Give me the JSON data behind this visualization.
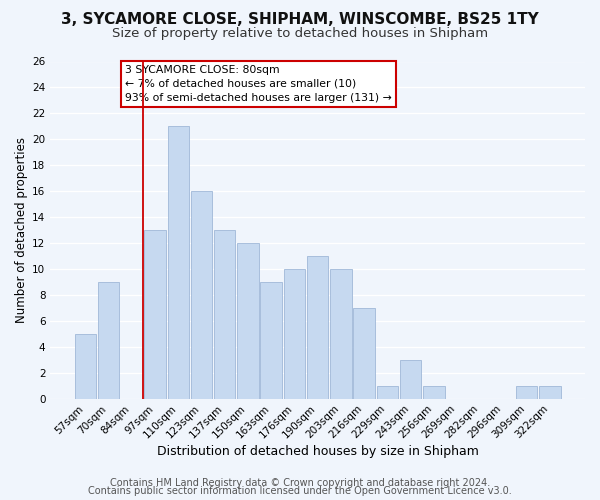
{
  "title1": "3, SYCAMORE CLOSE, SHIPHAM, WINSCOMBE, BS25 1TY",
  "title2": "Size of property relative to detached houses in Shipham",
  "xlabel": "Distribution of detached houses by size in Shipham",
  "ylabel": "Number of detached properties",
  "bar_labels": [
    "57sqm",
    "70sqm",
    "84sqm",
    "97sqm",
    "110sqm",
    "123sqm",
    "137sqm",
    "150sqm",
    "163sqm",
    "176sqm",
    "190sqm",
    "203sqm",
    "216sqm",
    "229sqm",
    "243sqm",
    "256sqm",
    "269sqm",
    "282sqm",
    "296sqm",
    "309sqm",
    "322sqm"
  ],
  "bar_values": [
    5,
    9,
    0,
    13,
    21,
    16,
    13,
    12,
    9,
    10,
    11,
    10,
    7,
    1,
    3,
    1,
    0,
    0,
    0,
    1,
    1
  ],
  "bar_color": "#c6d9f0",
  "bar_edge_color": "#a0b8d8",
  "ylim": [
    0,
    26
  ],
  "yticks": [
    0,
    2,
    4,
    6,
    8,
    10,
    12,
    14,
    16,
    18,
    20,
    22,
    24,
    26
  ],
  "vline_x_index": 2.5,
  "vline_color": "#cc0000",
  "annotation_text": "3 SYCAMORE CLOSE: 80sqm\n← 7% of detached houses are smaller (10)\n93% of semi-detached houses are larger (131) →",
  "annotation_box_color": "#ffffff",
  "annotation_box_edge": "#cc0000",
  "footer1": "Contains HM Land Registry data © Crown copyright and database right 2024.",
  "footer2": "Contains public sector information licensed under the Open Government Licence v3.0.",
  "background_color": "#f0f5fc",
  "grid_color": "#ffffff",
  "title1_fontsize": 11,
  "title2_fontsize": 9.5,
  "xlabel_fontsize": 9,
  "ylabel_fontsize": 8.5,
  "tick_fontsize": 7.5,
  "footer_fontsize": 7
}
